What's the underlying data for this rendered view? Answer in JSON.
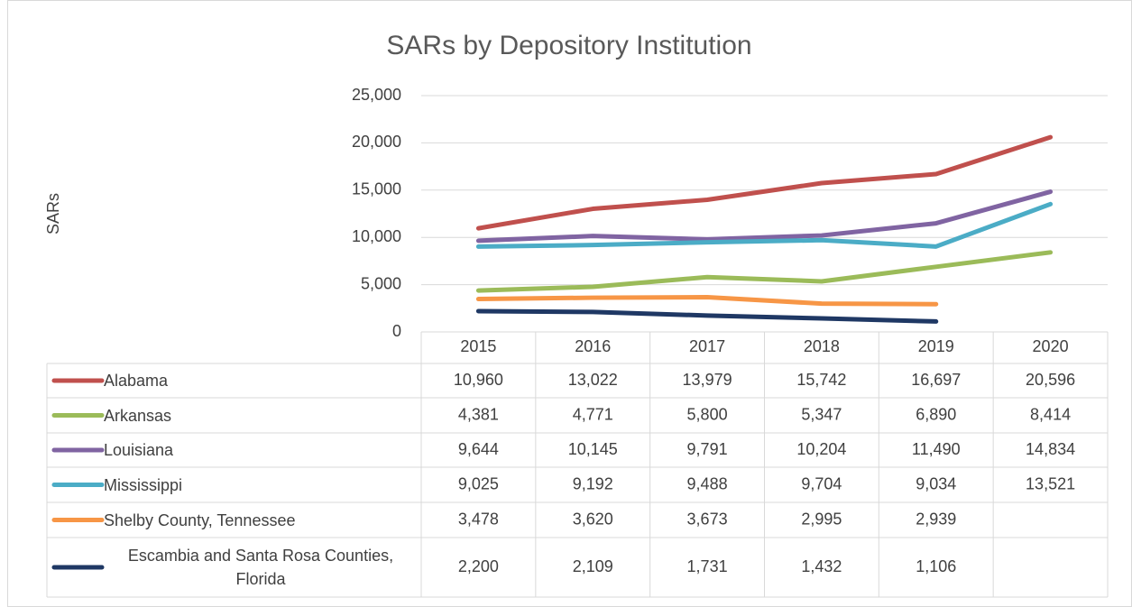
{
  "chart_data": {
    "type": "line",
    "title": "SARs by Depository Institution",
    "y_label": "SARs",
    "categories": [
      "2015",
      "2016",
      "2017",
      "2018",
      "2019",
      "2020"
    ],
    "ylim": [
      0,
      25000
    ],
    "yticks": [
      0,
      {
        "value": 5000,
        "label": "5,000"
      },
      {
        "value": 10000,
        "label": "10,000"
      },
      {
        "value": 15000,
        "label": "15,000"
      },
      {
        "value": 20000,
        "label": "20,000"
      },
      {
        "value": 25000,
        "label": "25,000"
      }
    ],
    "grid": true,
    "series": [
      {
        "name": "Alabama",
        "color": "#c0504d",
        "values": [
          10960,
          13022,
          13979,
          15742,
          16697,
          20596
        ],
        "value_labels": [
          "10,960",
          "13,022",
          "13,979",
          "15,742",
          "16,697",
          "20,596"
        ]
      },
      {
        "name": "Arkansas",
        "color": "#9bbb59",
        "values": [
          4381,
          4771,
          5800,
          5347,
          6890,
          8414
        ],
        "value_labels": [
          "4,381",
          "4,771",
          "5,800",
          "5,347",
          "6,890",
          "8,414"
        ]
      },
      {
        "name": "Louisiana",
        "color": "#8064a2",
        "values": [
          9644,
          10145,
          9791,
          10204,
          11490,
          14834
        ],
        "value_labels": [
          "9,644",
          "10,145",
          "9,791",
          "10,204",
          "11,490",
          "14,834"
        ]
      },
      {
        "name": "Mississippi",
        "color": "#4bacc6",
        "values": [
          9025,
          9192,
          9488,
          9704,
          9034,
          13521
        ],
        "value_labels": [
          "9,025",
          "9,192",
          "9,488",
          "9,704",
          "9,034",
          "13,521"
        ]
      },
      {
        "name": "Shelby County, Tennessee",
        "color": "#f79646",
        "values": [
          3478,
          3620,
          3673,
          2995,
          2939,
          null
        ],
        "value_labels": [
          "3,478",
          "3,620",
          "3,673",
          "2,995",
          "2,939",
          null
        ]
      },
      {
        "name": "Escambia and Santa Rosa Counties, Florida",
        "color": "#1f3864",
        "values": [
          2200,
          2109,
          1731,
          1432,
          1106,
          null
        ],
        "value_labels": [
          "2,200",
          "2,109",
          "1,731",
          "1,432",
          "1,106",
          null
        ]
      }
    ]
  }
}
